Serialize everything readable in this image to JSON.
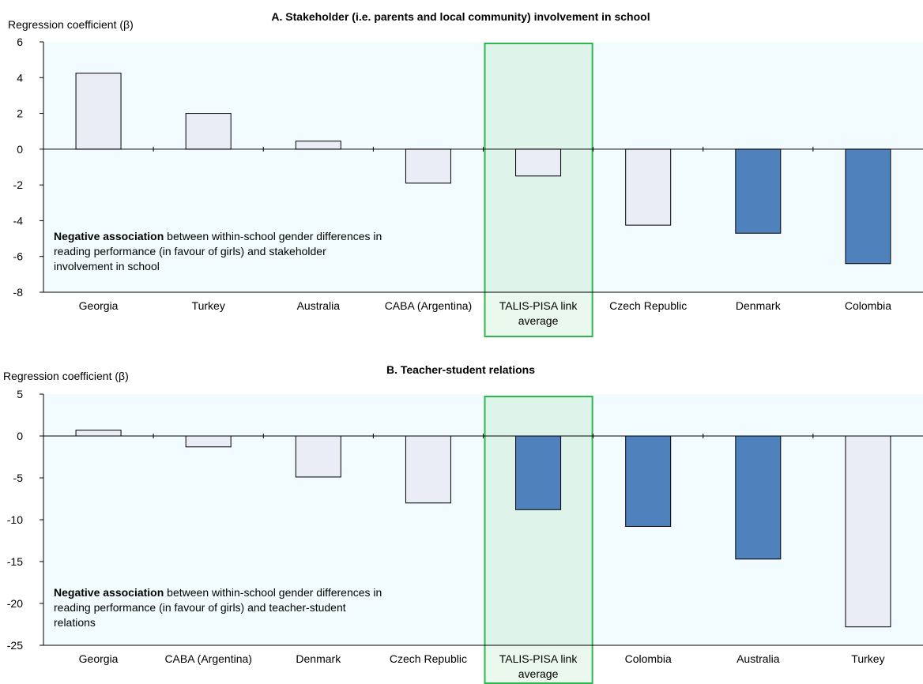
{
  "colors": {
    "plot_bg": "#f2fbfd",
    "bar_light": "#eaedf6",
    "bar_dark": "#4f81bd",
    "bar_border": "#000000",
    "highlight_border": "#2db84e",
    "highlight_fill": "#2db84e"
  },
  "chart_data": [
    {
      "type": "bar",
      "title": "A. Stakeholder (i.e. parents and local community) involvement in school",
      "ylabel": "Regression coefficient (β)",
      "ylim": [
        -8,
        6
      ],
      "yticks": [
        6,
        4,
        2,
        0,
        -2,
        -4,
        -6,
        -8
      ],
      "categories": [
        "Georgia",
        "Turkey",
        "Australia",
        "CABA (Argentina)",
        "TALIS-PISA link average",
        "Czech Republic",
        "Denmark",
        "Colombia"
      ],
      "category_lines": [
        [
          "Georgia"
        ],
        [
          "Turkey"
        ],
        [
          "Australia"
        ],
        [
          "CABA (Argentina)"
        ],
        [
          "TALIS-PISA link",
          "average"
        ],
        [
          "Czech Republic"
        ],
        [
          "Denmark"
        ],
        [
          "Colombia"
        ]
      ],
      "values": [
        4.25,
        2.0,
        0.45,
        -1.9,
        -1.5,
        -4.25,
        -4.7,
        -6.4
      ],
      "significant": [
        false,
        false,
        false,
        false,
        false,
        false,
        true,
        true
      ],
      "highlight_category": "TALIS-PISA link average",
      "note_bold": "Negative association",
      "note_rest": " between within-school gender differences in reading performance (in favour of girls) and stakeholder involvement in school"
    },
    {
      "type": "bar",
      "title": "B. Teacher-student relations",
      "ylabel": "Regression coefficient (β)",
      "ylim": [
        -25,
        5
      ],
      "yticks": [
        5,
        0,
        -5,
        -10,
        -15,
        -20,
        -25
      ],
      "categories": [
        "Georgia",
        "CABA (Argentina)",
        "Denmark",
        "Czech Republic",
        "TALIS-PISA link average",
        "Colombia",
        "Australia",
        "Turkey"
      ],
      "category_lines": [
        [
          "Georgia"
        ],
        [
          "CABA (Argentina)"
        ],
        [
          "Denmark"
        ],
        [
          "Czech Republic"
        ],
        [
          "TALIS-PISA link",
          "average"
        ],
        [
          "Colombia"
        ],
        [
          "Australia"
        ],
        [
          "Turkey"
        ]
      ],
      "values": [
        0.7,
        -1.3,
        -4.9,
        -8.0,
        -8.8,
        -10.8,
        -14.7,
        -22.8
      ],
      "significant": [
        false,
        false,
        false,
        false,
        true,
        true,
        true,
        false
      ],
      "highlight_category": "TALIS-PISA link average",
      "note_bold": "Negative association",
      "note_rest": " between within-school gender differences in reading performance (in favour of girls) and teacher-student relations"
    }
  ]
}
